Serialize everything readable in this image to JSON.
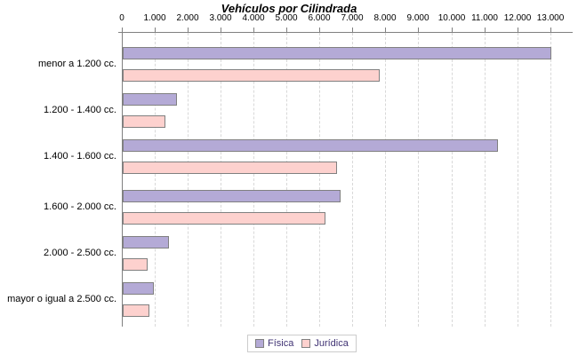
{
  "title": "Vehículos por Cilindrada",
  "colors": {
    "fisica_fill": "#b4aad6",
    "juridica_fill": "#fdd1ce",
    "bar_border": "#808080",
    "axis": "#808080",
    "gridline": "#d8d8d8",
    "legend_border": "#cccccc",
    "legend_text": "#3f3273",
    "title_text": "#000000"
  },
  "chart_data": {
    "type": "bar",
    "orientation": "horizontal",
    "title": "Vehículos por Cilindrada",
    "categories": [
      "menor a 1.200 cc.",
      "1.200 - 1.400 cc.",
      "1.400 - 1.600 cc.",
      "1.600 - 2.000 cc.",
      "2.000 - 2.500 cc.",
      "mayor o igual a 2.500 cc."
    ],
    "series": [
      {
        "name": "Física",
        "color": "#b4aad6",
        "values": [
          13000,
          1650,
          11400,
          6600,
          1400,
          950
        ]
      },
      {
        "name": "Jurídica",
        "color": "#fdd1ce",
        "values": [
          7800,
          1300,
          6500,
          6150,
          750,
          800
        ]
      }
    ],
    "xlim": [
      0,
      13000
    ],
    "x_tick_interval": 1000,
    "x_tick_labels": [
      "0",
      "1.000",
      "2.000",
      "3.000",
      "4.000",
      "5.000",
      "6.000",
      "7.000",
      "8.000",
      "9.000",
      "10.000",
      "11.000",
      "12.000",
      "13.000"
    ],
    "grid": "vertical-dashed",
    "axis_position": "top",
    "legend_position": "bottom"
  },
  "legend": {
    "items": [
      {
        "label": "Física"
      },
      {
        "label": "Jurídica"
      }
    ]
  }
}
